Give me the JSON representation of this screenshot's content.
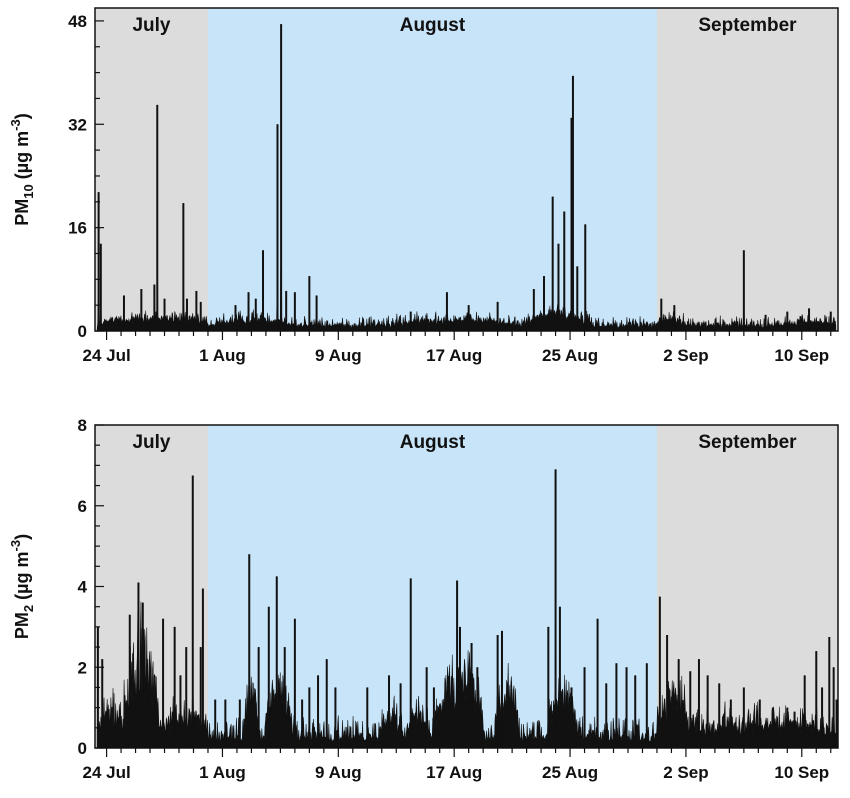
{
  "chart_data": [
    {
      "type": "area",
      "id": "pm10",
      "ylabel": {
        "main": "PM",
        "sub": "10",
        "unit": "(µg m",
        "sup": "-3",
        "close": ")"
      },
      "ylim": [
        0,
        50
      ],
      "yticks": [
        0,
        16,
        32,
        48
      ],
      "yminor_step": 4,
      "xlim_days": [
        -0.8,
        50.5
      ],
      "xticks": [
        {
          "day": 0,
          "label": "24 Jul"
        },
        {
          "day": 8,
          "label": "1 Aug"
        },
        {
          "day": 16,
          "label": "9 Aug"
        },
        {
          "day": 24,
          "label": "17 Aug"
        },
        {
          "day": 32,
          "label": "25 Aug"
        },
        {
          "day": 40,
          "label": "2 Sep"
        },
        {
          "day": 48,
          "label": "10 Sep"
        }
      ],
      "months": [
        {
          "label": "July",
          "start": -0.8,
          "end": 7.0,
          "color": "#dcdcdc"
        },
        {
          "label": "August",
          "start": 7.0,
          "end": 38.0,
          "color": "#c8e4f8"
        },
        {
          "label": "September",
          "start": 38.0,
          "end": 50.5,
          "color": "#dcdcdc"
        }
      ],
      "series_color": "#111111",
      "baseline": 1.0,
      "noise": 1.2,
      "bumps": [
        {
          "start": -0.6,
          "end": 7.0,
          "level": 1.5
        },
        {
          "start": 7.5,
          "end": 13.0,
          "level": 1.3
        },
        {
          "start": 20.0,
          "end": 28.0,
          "level": 1.3
        },
        {
          "start": 29.0,
          "end": 33.5,
          "level": 2.5
        },
        {
          "start": 38.0,
          "end": 40.0,
          "level": 1.2
        },
        {
          "start": 47.0,
          "end": 50.3,
          "level": 0.8
        }
      ],
      "spikes": [
        {
          "day": -0.55,
          "value": 21.5
        },
        {
          "day": -0.4,
          "value": 13.5
        },
        {
          "day": 1.2,
          "value": 5.5
        },
        {
          "day": 2.4,
          "value": 6.5
        },
        {
          "day": 3.3,
          "value": 7.2
        },
        {
          "day": 3.5,
          "value": 35.0
        },
        {
          "day": 4.0,
          "value": 5.0
        },
        {
          "day": 5.3,
          "value": 19.8
        },
        {
          "day": 5.55,
          "value": 5.0
        },
        {
          "day": 6.2,
          "value": 6.2
        },
        {
          "day": 6.5,
          "value": 4.5
        },
        {
          "day": 8.9,
          "value": 4.0
        },
        {
          "day": 9.8,
          "value": 6.0
        },
        {
          "day": 10.3,
          "value": 5.0
        },
        {
          "day": 10.8,
          "value": 12.5
        },
        {
          "day": 11.8,
          "value": 32.0
        },
        {
          "day": 12.05,
          "value": 47.5
        },
        {
          "day": 12.4,
          "value": 6.2
        },
        {
          "day": 13.0,
          "value": 6.0
        },
        {
          "day": 14.0,
          "value": 8.5
        },
        {
          "day": 14.5,
          "value": 5.5
        },
        {
          "day": 21.0,
          "value": 3.0
        },
        {
          "day": 23.5,
          "value": 6.0
        },
        {
          "day": 25.0,
          "value": 4.0
        },
        {
          "day": 27.0,
          "value": 4.5
        },
        {
          "day": 29.5,
          "value": 6.5
        },
        {
          "day": 30.2,
          "value": 8.5
        },
        {
          "day": 30.8,
          "value": 20.8
        },
        {
          "day": 31.2,
          "value": 13.5
        },
        {
          "day": 31.6,
          "value": 18.5
        },
        {
          "day": 32.1,
          "value": 33.0
        },
        {
          "day": 32.2,
          "value": 39.5
        },
        {
          "day": 32.5,
          "value": 10.0
        },
        {
          "day": 33.05,
          "value": 16.5
        },
        {
          "day": 38.3,
          "value": 5.0
        },
        {
          "day": 39.2,
          "value": 4.0
        },
        {
          "day": 44.0,
          "value": 12.5
        },
        {
          "day": 45.5,
          "value": 2.5
        },
        {
          "day": 47.0,
          "value": 3.0
        },
        {
          "day": 48.5,
          "value": 3.5
        },
        {
          "day": 50.0,
          "value": 3.0
        }
      ],
      "months_text_only": true
    },
    {
      "type": "area",
      "id": "pm2",
      "ylabel": {
        "main": "PM",
        "sub": "2",
        "unit": "(µg m",
        "sup": "-3",
        "close": ")"
      },
      "ylim": [
        0,
        8
      ],
      "yticks": [
        0,
        2,
        4,
        6,
        8
      ],
      "yminor_step": 0.5,
      "xlim_days": [
        -0.8,
        50.5
      ],
      "xticks": [
        {
          "day": 0,
          "label": "24 Jul"
        },
        {
          "day": 8,
          "label": "1 Aug"
        },
        {
          "day": 16,
          "label": "9 Aug"
        },
        {
          "day": 24,
          "label": "17 Aug"
        },
        {
          "day": 32,
          "label": "25 Aug"
        },
        {
          "day": 40,
          "label": "2 Sep"
        },
        {
          "day": 48,
          "label": "10 Sep"
        }
      ],
      "months": [
        {
          "label": "July",
          "start": -0.8,
          "end": 7.0,
          "color": "#dcdcdc"
        },
        {
          "label": "August",
          "start": 7.0,
          "end": 38.0,
          "color": "#c8e4f8"
        },
        {
          "label": "September",
          "start": 38.0,
          "end": 50.5,
          "color": "#dcdcdc"
        }
      ],
      "series_color": "#111111",
      "baseline": 0.3,
      "noise": 0.45,
      "bumps": [
        {
          "start": -0.8,
          "end": 1.5,
          "level": 0.8
        },
        {
          "start": 1.2,
          "end": 3.6,
          "level": 3.0
        },
        {
          "start": 3.6,
          "end": 7.0,
          "level": 0.7
        },
        {
          "start": 9.5,
          "end": 10.5,
          "level": 1.5
        },
        {
          "start": 11.0,
          "end": 12.8,
          "level": 1.8
        },
        {
          "start": 18.8,
          "end": 20.5,
          "level": 0.6
        },
        {
          "start": 20.7,
          "end": 22.2,
          "level": 0.7
        },
        {
          "start": 22.5,
          "end": 24.0,
          "level": 1.0
        },
        {
          "start": 23.3,
          "end": 26.0,
          "level": 2.0
        },
        {
          "start": 26.8,
          "end": 28.5,
          "level": 1.5
        },
        {
          "start": 30.5,
          "end": 32.5,
          "level": 1.5
        },
        {
          "start": 38.0,
          "end": 40.5,
          "level": 1.2
        },
        {
          "start": 40.5,
          "end": 50.5,
          "level": 0.5
        }
      ],
      "spikes": [
        {
          "day": -0.6,
          "value": 3.0
        },
        {
          "day": -0.3,
          "value": 2.2
        },
        {
          "day": 1.6,
          "value": 3.3
        },
        {
          "day": 2.2,
          "value": 4.1
        },
        {
          "day": 2.5,
          "value": 3.6
        },
        {
          "day": 3.9,
          "value": 3.2
        },
        {
          "day": 4.7,
          "value": 3.0
        },
        {
          "day": 5.1,
          "value": 1.8
        },
        {
          "day": 5.5,
          "value": 2.5
        },
        {
          "day": 5.95,
          "value": 6.75
        },
        {
          "day": 6.5,
          "value": 2.5
        },
        {
          "day": 6.65,
          "value": 3.95
        },
        {
          "day": 7.5,
          "value": 1.2
        },
        {
          "day": 8.2,
          "value": 1.2
        },
        {
          "day": 9.2,
          "value": 1.2
        },
        {
          "day": 9.85,
          "value": 4.8
        },
        {
          "day": 10.5,
          "value": 2.5
        },
        {
          "day": 11.2,
          "value": 3.5
        },
        {
          "day": 11.75,
          "value": 4.25
        },
        {
          "day": 12.3,
          "value": 2.5
        },
        {
          "day": 13.0,
          "value": 3.2
        },
        {
          "day": 13.5,
          "value": 1.2
        },
        {
          "day": 14.0,
          "value": 1.5
        },
        {
          "day": 14.6,
          "value": 1.8
        },
        {
          "day": 15.2,
          "value": 2.2
        },
        {
          "day": 15.8,
          "value": 1.5
        },
        {
          "day": 18.0,
          "value": 1.5
        },
        {
          "day": 19.5,
          "value": 1.8
        },
        {
          "day": 20.3,
          "value": 1.6
        },
        {
          "day": 21.0,
          "value": 4.2
        },
        {
          "day": 22.1,
          "value": 2.0
        },
        {
          "day": 22.6,
          "value": 1.5
        },
        {
          "day": 24.2,
          "value": 4.15
        },
        {
          "day": 24.4,
          "value": 3.0
        },
        {
          "day": 25.2,
          "value": 2.6
        },
        {
          "day": 25.6,
          "value": 2.0
        },
        {
          "day": 27.0,
          "value": 2.8
        },
        {
          "day": 27.3,
          "value": 2.9
        },
        {
          "day": 30.5,
          "value": 3.0
        },
        {
          "day": 31.0,
          "value": 6.9
        },
        {
          "day": 31.3,
          "value": 3.5
        },
        {
          "day": 32.1,
          "value": 1.5
        },
        {
          "day": 33.0,
          "value": 2.0
        },
        {
          "day": 33.9,
          "value": 3.2
        },
        {
          "day": 34.5,
          "value": 1.6
        },
        {
          "day": 35.2,
          "value": 2.1
        },
        {
          "day": 35.9,
          "value": 2.0
        },
        {
          "day": 36.5,
          "value": 1.8
        },
        {
          "day": 37.3,
          "value": 2.1
        },
        {
          "day": 38.2,
          "value": 3.75
        },
        {
          "day": 38.7,
          "value": 2.8
        },
        {
          "day": 39.5,
          "value": 2.2
        },
        {
          "day": 40.3,
          "value": 1.9
        },
        {
          "day": 40.9,
          "value": 2.2
        },
        {
          "day": 41.5,
          "value": 1.8
        },
        {
          "day": 42.3,
          "value": 1.6
        },
        {
          "day": 43.1,
          "value": 1.2
        },
        {
          "day": 44.0,
          "value": 1.5
        },
        {
          "day": 45.1,
          "value": 1.2
        },
        {
          "day": 46.0,
          "value": 1.0
        },
        {
          "day": 47.0,
          "value": 1.0
        },
        {
          "day": 47.5,
          "value": 0.9
        },
        {
          "day": 48.2,
          "value": 1.8
        },
        {
          "day": 49.0,
          "value": 2.4
        },
        {
          "day": 49.4,
          "value": 1.5
        },
        {
          "day": 49.9,
          "value": 2.75
        },
        {
          "day": 50.2,
          "value": 2.0
        },
        {
          "day": 50.4,
          "value": 1.2
        }
      ]
    }
  ]
}
